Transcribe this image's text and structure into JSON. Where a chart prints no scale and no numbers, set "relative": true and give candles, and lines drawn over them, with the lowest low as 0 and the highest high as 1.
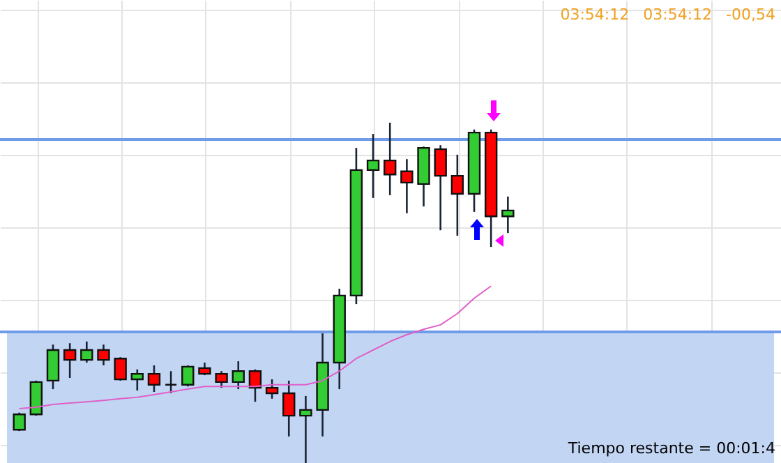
{
  "chart_data": {
    "type": "candlestick",
    "relative": true,
    "grid": true,
    "categories": [
      null,
      null,
      null,
      null,
      null,
      null,
      null,
      null,
      null,
      null,
      null,
      null,
      null,
      null,
      null,
      null,
      null,
      null,
      null,
      null,
      null,
      null,
      null,
      null,
      null,
      null,
      null,
      null,
      null,
      null
    ],
    "ohlc": [
      [
        0.098,
        0.148,
        0.094,
        0.143
      ],
      [
        0.143,
        0.242,
        0.139,
        0.238
      ],
      [
        0.242,
        0.348,
        0.217,
        0.332
      ],
      [
        0.332,
        0.352,
        0.25,
        0.303
      ],
      [
        0.303,
        0.357,
        0.295,
        0.332
      ],
      [
        0.332,
        0.348,
        0.287,
        0.303
      ],
      [
        0.307,
        0.311,
        0.242,
        0.246
      ],
      [
        0.246,
        0.275,
        0.213,
        0.262
      ],
      [
        0.262,
        0.287,
        0.209,
        0.23
      ],
      [
        0.23,
        0.27,
        0.205,
        0.23
      ],
      [
        0.23,
        0.287,
        0.225,
        0.283
      ],
      [
        0.279,
        0.295,
        0.258,
        0.262
      ],
      [
        0.262,
        0.27,
        0.221,
        0.238
      ],
      [
        0.238,
        0.299,
        0.217,
        0.27
      ],
      [
        0.27,
        0.275,
        0.18,
        0.221
      ],
      [
        0.221,
        0.246,
        0.189,
        0.205
      ],
      [
        0.205,
        0.242,
        0.078,
        0.139
      ],
      [
        0.139,
        0.197,
        0,
        0.156
      ],
      [
        0.156,
        0.381,
        0.078,
        0.295
      ],
      [
        0.295,
        0.512,
        0.217,
        0.492
      ],
      [
        0.492,
        0.926,
        0.467,
        0.861
      ],
      [
        0.861,
        0.967,
        0.779,
        0.889
      ],
      [
        0.889,
        1,
        0.787,
        0.848
      ],
      [
        0.857,
        0.893,
        0.734,
        0.824
      ],
      [
        0.82,
        0.93,
        0.754,
        0.926
      ],
      [
        0.922,
        0.934,
        0.684,
        0.844
      ],
      [
        0.844,
        0.906,
        0.668,
        0.791
      ],
      [
        0.791,
        0.98,
        0.738,
        0.971
      ],
      [
        0.971,
        0.98,
        0.635,
        0.725
      ],
      [
        0.725,
        0.783,
        0.676,
        0.742
      ]
    ],
    "colors": [
      "#33cc33",
      "#33cc33",
      "#33cc33",
      "#ff0000",
      "#33cc33",
      "#ff0000",
      "#ff0000",
      "#33cc33",
      "#ff0000",
      "#111111",
      "#33cc33",
      "#ff0000",
      "#ff0000",
      "#33cc33",
      "#ff0000",
      "#ff0000",
      "#ff0000",
      "#33cc33",
      "#33cc33",
      "#33cc33",
      "#33cc33",
      "#33cc33",
      "#ff0000",
      "#ff0000",
      "#33cc33",
      "#ff0000",
      "#ff0000",
      "#33cc33",
      "#ff0000",
      "#33cc33"
    ],
    "series": [
      {
        "type": "line",
        "color": "#e060c8",
        "values": [
          0.16,
          0.164,
          0.172,
          0.176,
          0.18,
          0.184,
          0.189,
          0.193,
          0.201,
          0.209,
          0.217,
          0.225,
          0.225,
          0.225,
          0.225,
          0.23,
          0.23,
          0.23,
          0.242,
          0.27,
          0.307,
          0.332,
          0.357,
          0.377,
          0.393,
          0.406,
          0.439,
          0.484,
          0.52,
          null
        ]
      }
    ],
    "bands": [
      {
        "axis": "y",
        "from": 0,
        "to": 0.385,
        "color": "#c2d6f4"
      }
    ],
    "ref_lines": [
      {
        "axis": "y",
        "value": 0.385,
        "color": "#6f9be8"
      },
      {
        "axis": "y",
        "value": 0.951,
        "color": "#6f9be8"
      }
    ],
    "annotations": [
      "03:54:12",
      "03:54:12",
      "-00,54",
      "Tiempo restante = 00:01:4"
    ]
  }
}
